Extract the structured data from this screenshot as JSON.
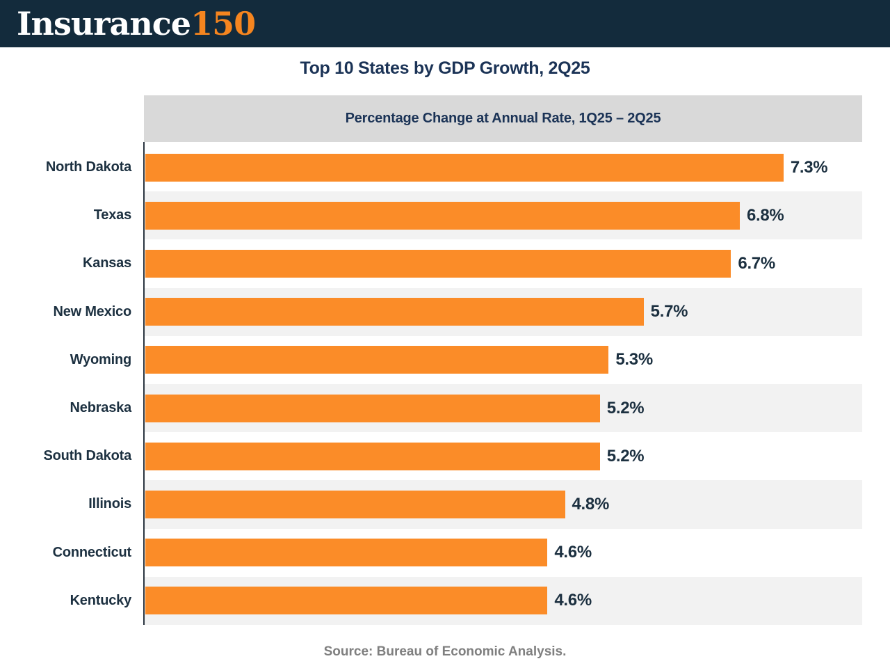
{
  "header": {
    "logo_primary": "Insurance",
    "logo_accent": "150"
  },
  "chart_data": {
    "type": "bar",
    "orientation": "horizontal",
    "title": "Top 10 States by GDP Growth, 2Q25",
    "band_label": "Percentage Change at Annual Rate, 1Q25 – 2Q25",
    "categories": [
      "North Dakota",
      "Texas",
      "Kansas",
      "New Mexico",
      "Wyoming",
      "Nebraska",
      "South Dakota",
      "Illinois",
      "Connecticut",
      "Kentucky"
    ],
    "values": [
      7.3,
      6.8,
      6.7,
      5.7,
      5.3,
      5.2,
      5.2,
      4.8,
      4.6,
      4.6
    ],
    "value_labels": [
      "7.3%",
      "6.8%",
      "6.7%",
      "5.7%",
      "5.3%",
      "5.2%",
      "5.2%",
      "4.8%",
      "4.6%",
      "4.6%"
    ],
    "unit": "%",
    "xlim": [
      0,
      8.2
    ],
    "grid": false,
    "legend": "none",
    "value_label_position": "outside-end",
    "source": "Source: Bureau of Economic Analysis."
  },
  "colors": {
    "header_bg": "#132B3C",
    "logo_accent": "#F5851F",
    "title_color": "#1B3356",
    "band_bg": "#D9D9D9",
    "row_alt_bg": "#F2F2F2",
    "bar_color": "#FB8C28",
    "label_color": "#1C3040",
    "source_color": "#7F7F7F"
  }
}
